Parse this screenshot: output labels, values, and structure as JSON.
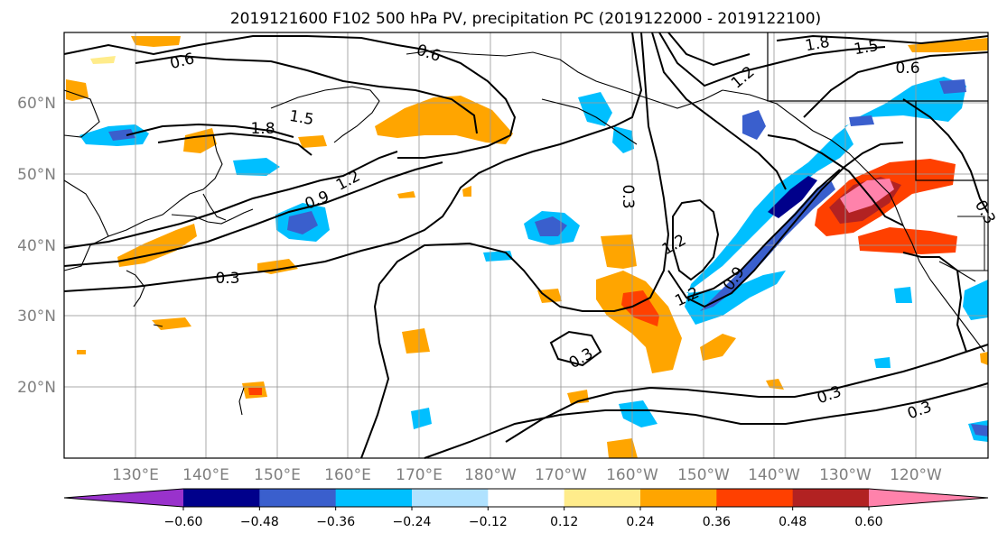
{
  "title": "2019121600 F102 500 hPa PV, precipitation PC (2019122000 - 2019122100)",
  "lat_labels": [
    "60°N",
    "50°N",
    "40°N",
    "30°N",
    "20°N"
  ],
  "lon_labels": [
    "130°E",
    "140°E",
    "150°E",
    "160°E",
    "170°E",
    "180°W",
    "170°W",
    "160°W",
    "150°W",
    "140°W",
    "130°W",
    "120°W"
  ],
  "colorbar": {
    "ticks": [
      "−0.60",
      "−0.48",
      "−0.36",
      "−0.24",
      "−0.12",
      "0.12",
      "0.24",
      "0.36",
      "0.48",
      "0.60"
    ],
    "colors": [
      "#9932cc",
      "#00008b",
      "#3a5fcd",
      "#00bfff",
      "#b0e2ff",
      "#ffffff",
      "#ffec8b",
      "#ffa500",
      "#ff4000",
      "#b22222",
      "#ff82ab"
    ]
  },
  "contour_labels": [
    "0.6",
    "0.6",
    "1.5",
    "1.8",
    "0.9",
    "1.2",
    "0.3",
    "0.3",
    "1.2",
    "1.2",
    "0.9",
    "0.3",
    "0.3",
    "0.3",
    "0.3",
    "1.5",
    "1.8",
    "0.6",
    "1.2",
    "0.3"
  ]
}
